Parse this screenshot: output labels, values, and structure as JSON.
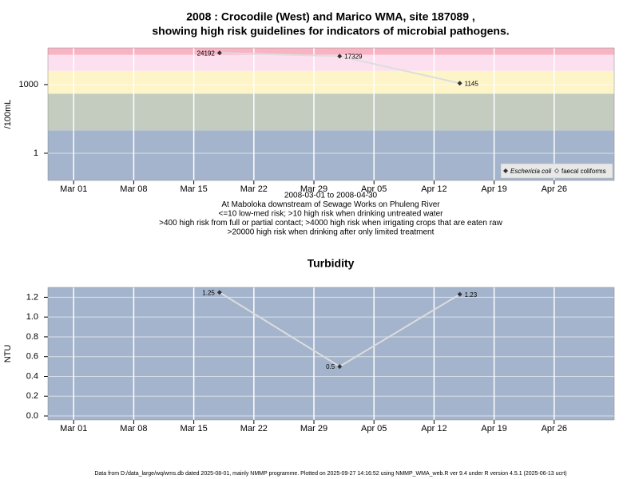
{
  "chart_data": [
    {
      "type": "line",
      "title": [
        "2008 : Crocodile (West) and Marico WMA, site 187089 ,",
        "showing high risk guidelines for indicators of microbial pathogens."
      ],
      "notes": [
        "2008-03-01 to 2008-04-30",
        "At Maboloka downstream of Sewage Works on Phuleng River",
        "<=10 low-med risk; >10 high risk when drinking untreated water",
        ">400 high risk from full or partial contact; >4000 high risk when irrigating crops that are eaten raw",
        ">20000 high risk when drinking after only limited treatment"
      ],
      "ylabel": "/100mL",
      "log_scale": true,
      "x": [
        "2008-03-18",
        "2008-04-01",
        "2008-04-15"
      ],
      "series": [
        {
          "name": "Eschericia coli",
          "color": "#333333",
          "line_color": "#dddddd",
          "values": [
            24192,
            17329,
            1145
          ]
        },
        {
          "name": "faecal coliforms",
          "color": "#333333",
          "line_color": "#dddddd",
          "values": [
            null,
            null,
            null
          ]
        }
      ],
      "xlim": [
        "2008-02-27",
        "2008-05-03"
      ],
      "xticks": [
        {
          "value": "2008-03-01",
          "label": "Mar 01"
        },
        {
          "value": "2008-03-08",
          "label": "Mar 08"
        },
        {
          "value": "2008-03-15",
          "label": "Mar 15"
        },
        {
          "value": "2008-03-22",
          "label": "Mar 22"
        },
        {
          "value": "2008-03-29",
          "label": "Mar 29"
        },
        {
          "value": "2008-04-05",
          "label": "Apr 05"
        },
        {
          "value": "2008-04-12",
          "label": "Apr 12"
        },
        {
          "value": "2008-04-19",
          "label": "Apr 19"
        },
        {
          "value": "2008-04-26",
          "label": "Apr 26"
        }
      ],
      "ylim": [
        0.065,
        40000
      ],
      "yticks": [
        1,
        1000
      ],
      "band_edges": [
        10,
        400,
        4000,
        20000
      ],
      "band_colors": [
        "#a4b4cc",
        "#c4ccc0",
        "#fdf5c8",
        "#fce0f0",
        "#f9b4c4"
      ],
      "grid": true,
      "legend": "bottom-right"
    },
    {
      "type": "line",
      "title": [
        "Turbidity"
      ],
      "ylabel": "NTU",
      "log_scale": false,
      "x": [
        "2008-03-18",
        "2008-04-01",
        "2008-04-15"
      ],
      "series": [
        {
          "name": "Turbidity",
          "color": "#333333",
          "line_color": "#dddddd",
          "values": [
            1.25,
            0.5,
            1.23
          ]
        }
      ],
      "xlim": [
        "2008-02-27",
        "2008-05-03"
      ],
      "xticks": [
        {
          "value": "2008-03-01",
          "label": "Mar 01"
        },
        {
          "value": "2008-03-08",
          "label": "Mar 08"
        },
        {
          "value": "2008-03-15",
          "label": "Mar 15"
        },
        {
          "value": "2008-03-22",
          "label": "Mar 22"
        },
        {
          "value": "2008-03-29",
          "label": "Mar 29"
        },
        {
          "value": "2008-04-05",
          "label": "Apr 05"
        },
        {
          "value": "2008-04-12",
          "label": "Apr 12"
        },
        {
          "value": "2008-04-19",
          "label": "Apr 19"
        },
        {
          "value": "2008-04-26",
          "label": "Apr 26"
        }
      ],
      "ylim": [
        -0.04,
        1.3
      ],
      "yticks": [
        {
          "value": 0,
          "label": "0.0"
        },
        0.2,
        0.4,
        0.6,
        0.8,
        {
          "value": 1,
          "label": "1.0"
        },
        1.2
      ],
      "band_colors": [
        "#a4b4cc"
      ],
      "grid": true
    }
  ],
  "footer": "Data from D:/data_large/wq/wms.db dated 2025-08-01, mainly NMMP programme. Plotted on 2025-09-27 14:16:52 using NMMP_WMA_web.R ver 9.4 under R version 4.5.1 (2025-06-13 ucrt)"
}
